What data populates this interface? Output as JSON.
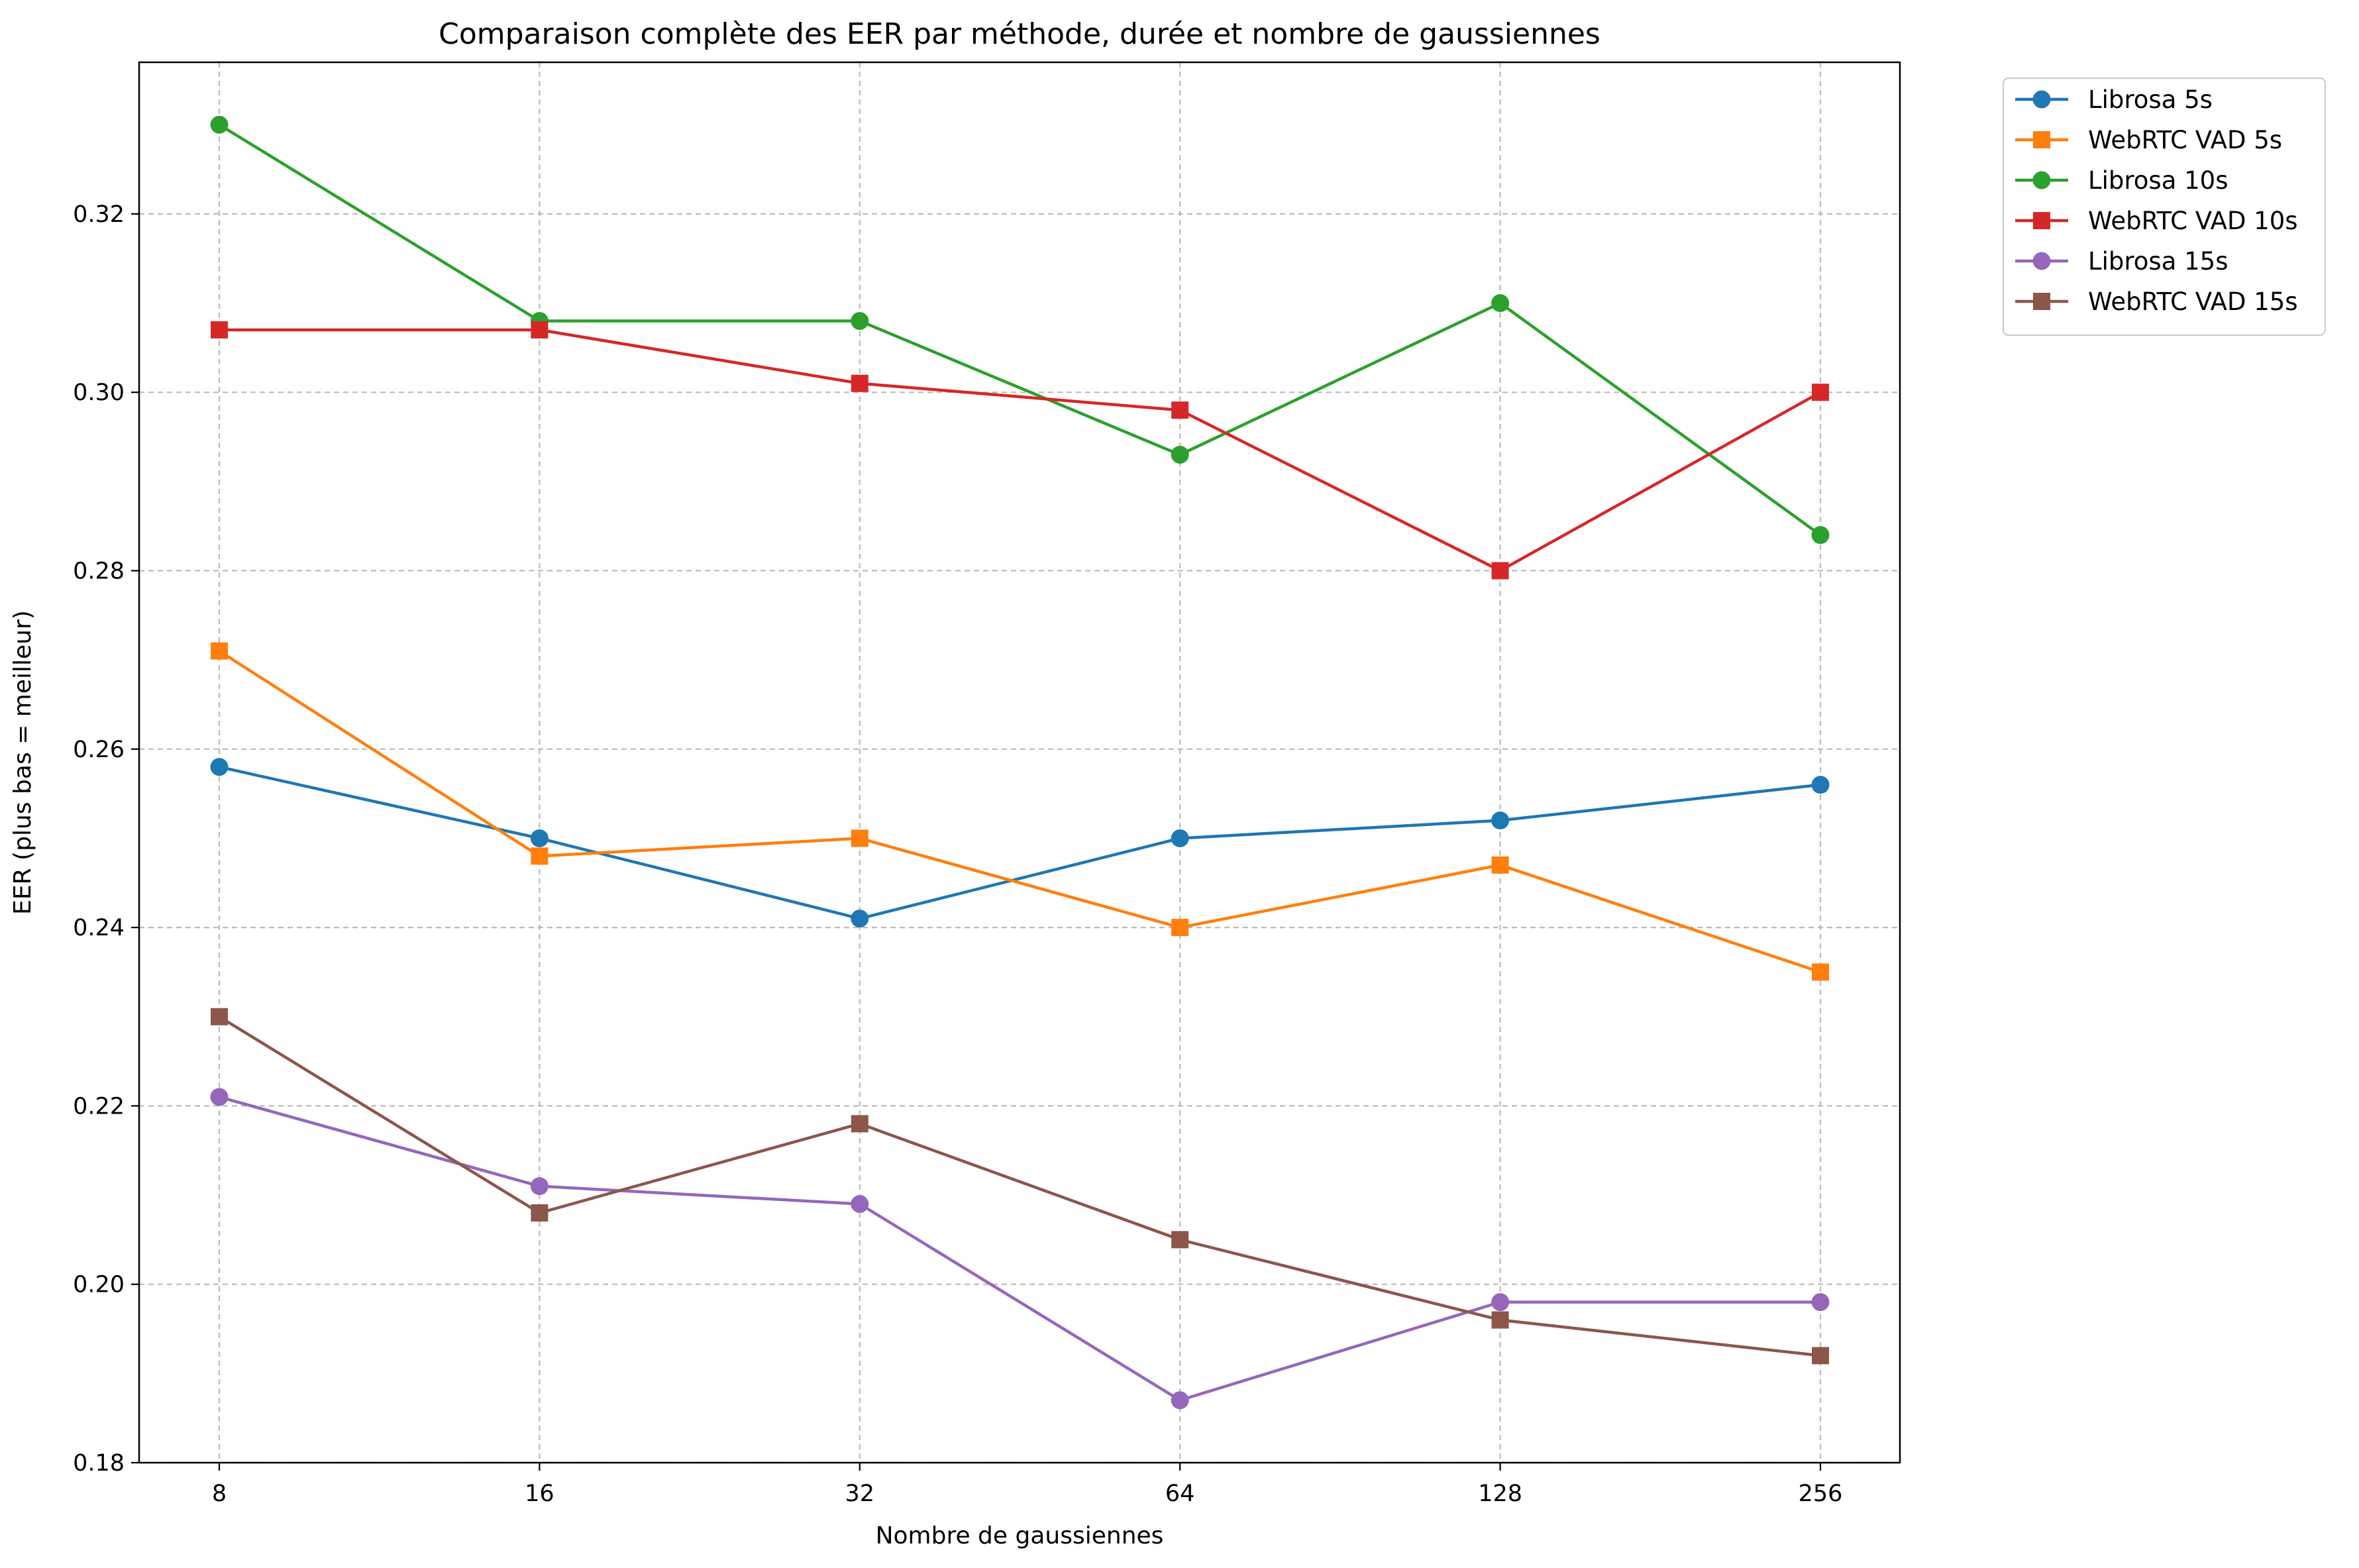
{
  "chart_data": {
    "type": "line",
    "title": "Comparaison complète des EER par méthode, durée et nombre de gaussiennes",
    "xlabel": "Nombre de gaussiennes",
    "ylabel": "EER (plus bas = meilleur)",
    "categories": [
      "8",
      "16",
      "32",
      "64",
      "128",
      "256"
    ],
    "yticks": [
      "0.18",
      "0.20",
      "0.22",
      "0.24",
      "0.26",
      "0.28",
      "0.30",
      "0.32"
    ],
    "ylim": [
      0.18,
      0.337
    ],
    "grid": true,
    "legend_position": "outside top-right",
    "series": [
      {
        "name": "Librosa 5s",
        "color": "#1f77b4",
        "marker": "circle",
        "values": [
          0.258,
          0.25,
          0.241,
          0.25,
          0.252,
          0.256
        ]
      },
      {
        "name": "WebRTC VAD 5s",
        "color": "#ff7f0e",
        "marker": "square",
        "values": [
          0.271,
          0.248,
          0.25,
          0.24,
          0.247,
          0.235
        ]
      },
      {
        "name": "Librosa 10s",
        "color": "#2ca02c",
        "marker": "circle",
        "values": [
          0.33,
          0.308,
          0.308,
          0.293,
          0.31,
          0.284
        ]
      },
      {
        "name": "WebRTC VAD 10s",
        "color": "#d62728",
        "marker": "square",
        "values": [
          0.307,
          0.307,
          0.301,
          0.298,
          0.28,
          0.3
        ]
      },
      {
        "name": "Librosa 15s",
        "color": "#9467bd",
        "marker": "circle",
        "values": [
          0.221,
          0.211,
          0.209,
          0.187,
          0.198,
          0.198
        ]
      },
      {
        "name": "WebRTC VAD 15s",
        "color": "#8c564b",
        "marker": "square",
        "values": [
          0.23,
          0.208,
          0.218,
          0.205,
          0.196,
          0.192
        ]
      }
    ]
  }
}
